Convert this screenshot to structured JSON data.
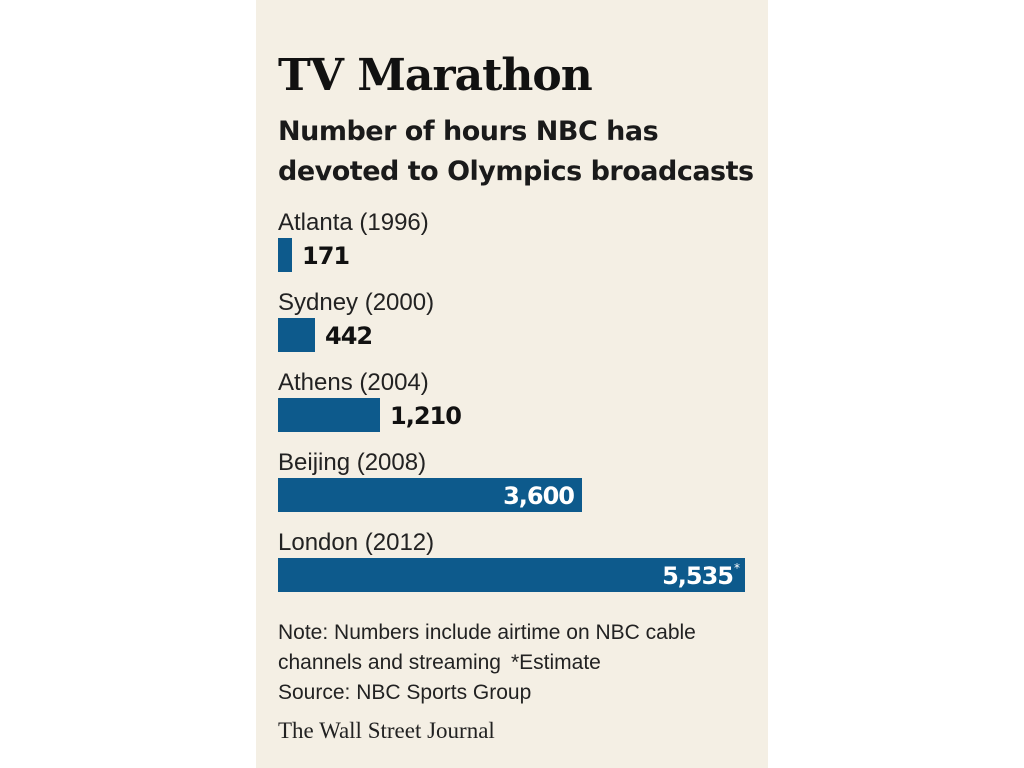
{
  "header": {
    "title": "TV Marathon",
    "subtitle_lines": [
      "Number of hours NBC has",
      "devoted to Olympics broadcasts"
    ]
  },
  "chart_data": {
    "type": "bar",
    "orientation": "horizontal",
    "title": "TV Marathon",
    "subtitle": "Number of hours NBC has devoted to Olympics broadcasts",
    "categories": [
      "Atlanta (1996)",
      "Sydney (2000)",
      "Athens (2004)",
      "Beijing (2008)",
      "London (2012)"
    ],
    "values": [
      171,
      442,
      1210,
      3600,
      5535
    ],
    "value_labels": [
      "171",
      "442",
      "1,210",
      "3,600",
      "5,535"
    ],
    "value_label_markers": [
      "",
      "",
      "",
      "",
      "*"
    ],
    "xlim": [
      0,
      5535
    ],
    "grid": false,
    "legend": "none",
    "bar_color": "#0d5a8c",
    "label_color_inside": "#ffffff",
    "label_color_outside": "#111111"
  },
  "footer": {
    "note_line1": "Note: Numbers include airtime on NBC cable",
    "note_line2": "channels and streaming",
    "estimate": "*Estimate",
    "source": "Source: NBC Sports Group",
    "credit": "The Wall Street Journal"
  },
  "colors": {
    "background": "#f4efe4",
    "bar": "#0d5a8c",
    "text": "#111111"
  }
}
